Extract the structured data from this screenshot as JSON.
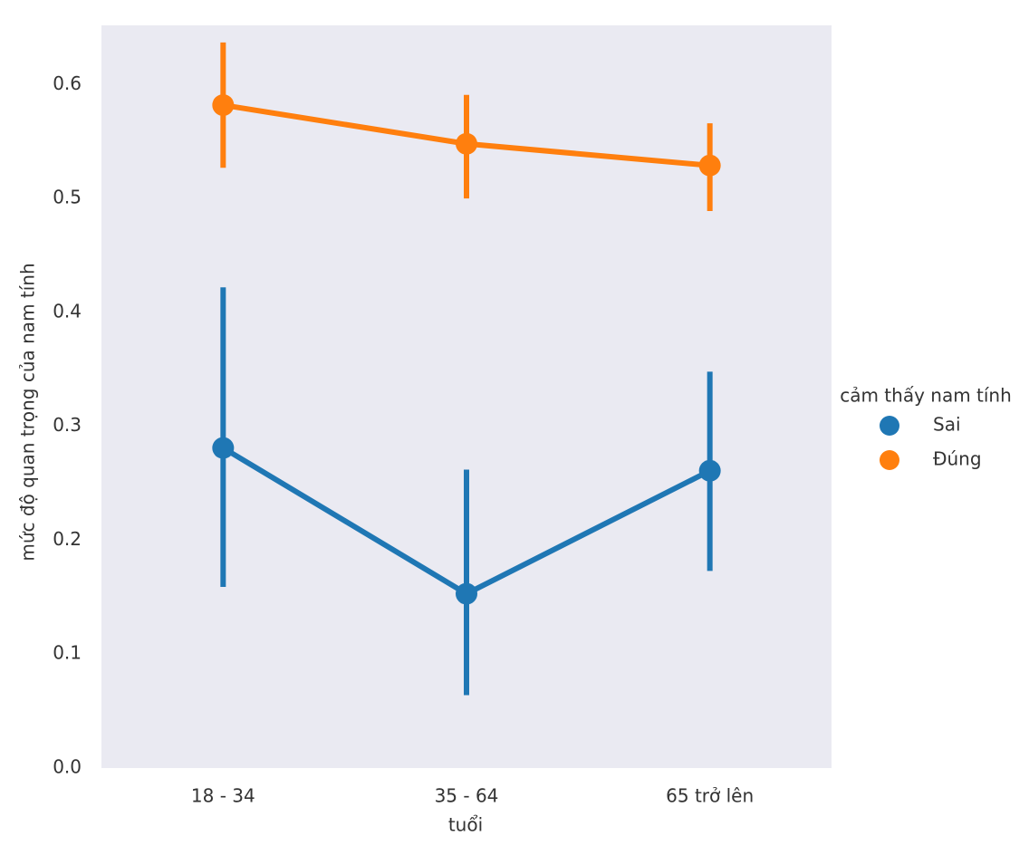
{
  "chart_data": {
    "type": "pointplot",
    "xlabel": "tuổi",
    "ylabel": "mức độ quan trọng của nam tính",
    "categories": [
      "18 - 34",
      "35 - 64",
      "65 trở lên"
    ],
    "series": [
      {
        "name": "Sai",
        "color": "#1f77b4",
        "values": [
          0.281,
          0.153,
          0.261
        ],
        "lower": [
          0.159,
          0.064,
          0.173
        ],
        "upper": [
          0.422,
          0.262,
          0.348
        ]
      },
      {
        "name": "Đúng",
        "color": "#ff7f0e",
        "values": [
          0.582,
          0.548,
          0.529
        ],
        "lower": [
          0.527,
          0.5,
          0.489
        ],
        "upper": [
          0.637,
          0.591,
          0.566
        ]
      }
    ],
    "ylim": [
      0,
      0.652
    ],
    "yticks": [
      {
        "value": 0,
        "label": "0.0"
      },
      0.1,
      0.2,
      0.3,
      0.4,
      0.5,
      0.6
    ],
    "grid": false,
    "legend": {
      "title": "cảm thấy nam tính",
      "position": "outside right"
    }
  }
}
